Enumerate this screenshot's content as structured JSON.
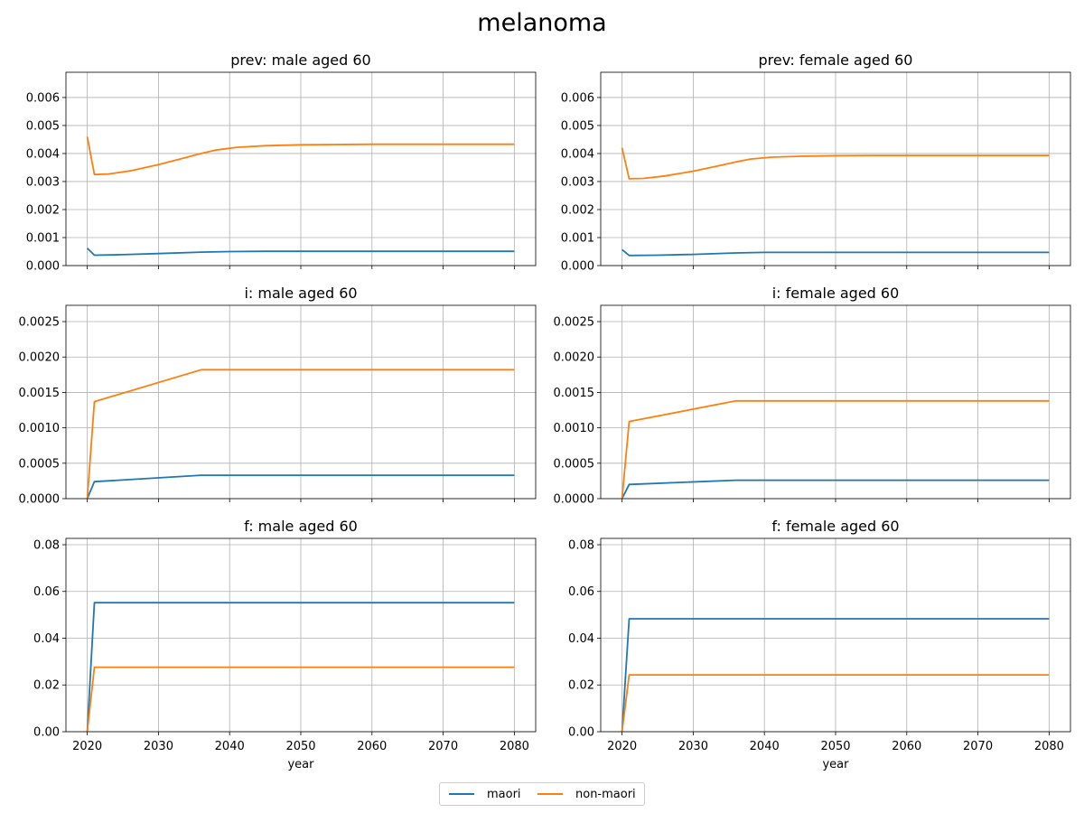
{
  "figure": {
    "title": "melanoma"
  },
  "colors": {
    "maori": "#1f77b4",
    "non_maori": "#ff7f0e",
    "grid": "#b0b0b0"
  },
  "legend": [
    {
      "label": "maori",
      "color": "#1f77b4"
    },
    {
      "label": "non-maori",
      "color": "#ff7f0e"
    }
  ],
  "chart_data": [
    {
      "type": "line",
      "title": "prev: male aged 60",
      "xlabel": "",
      "ylabel": "",
      "xlim": [
        2017,
        2083
      ],
      "ylim": [
        0,
        0.0069
      ],
      "xticks": [
        2020,
        2030,
        2040,
        2050,
        2060,
        2070,
        2080
      ],
      "show_xticklabels": false,
      "yticks": [
        0,
        0.001,
        0.002,
        0.003,
        0.004,
        0.005,
        0.006
      ],
      "ytick_labels": [
        "0.000",
        "0.001",
        "0.002",
        "0.003",
        "0.004",
        "0.005",
        "0.006"
      ],
      "grid": true,
      "series": [
        {
          "name": "maori",
          "color": "#1f77b4",
          "x": [
            2020,
            2021,
            2025,
            2030,
            2036,
            2040,
            2045,
            2050,
            2060,
            2080
          ],
          "y": [
            0.00062,
            0.00037,
            0.00039,
            0.00043,
            0.00048,
            0.0005,
            0.00051,
            0.00051,
            0.00051,
            0.00051
          ]
        },
        {
          "name": "non-maori",
          "color": "#ff7f0e",
          "x": [
            2020,
            2021,
            2023,
            2026,
            2030,
            2033,
            2036,
            2038,
            2041,
            2045,
            2050,
            2055,
            2060,
            2080
          ],
          "y": [
            0.0046,
            0.00325,
            0.00327,
            0.00338,
            0.0036,
            0.0038,
            0.004,
            0.00412,
            0.00422,
            0.00428,
            0.00431,
            0.00432,
            0.00433,
            0.00433
          ]
        }
      ]
    },
    {
      "type": "line",
      "title": "prev: female aged 60",
      "xlabel": "",
      "ylabel": "",
      "xlim": [
        2017,
        2083
      ],
      "ylim": [
        0,
        0.0069
      ],
      "xticks": [
        2020,
        2030,
        2040,
        2050,
        2060,
        2070,
        2080
      ],
      "show_xticklabels": false,
      "yticks": [
        0,
        0.001,
        0.002,
        0.003,
        0.004,
        0.005,
        0.006
      ],
      "ytick_labels": [
        "0.000",
        "0.001",
        "0.002",
        "0.003",
        "0.004",
        "0.005",
        "0.006"
      ],
      "grid": true,
      "series": [
        {
          "name": "maori",
          "color": "#1f77b4",
          "x": [
            2020,
            2021,
            2025,
            2030,
            2036,
            2040,
            2045,
            2050,
            2080
          ],
          "y": [
            0.00057,
            0.00036,
            0.00037,
            0.0004,
            0.00045,
            0.00047,
            0.00047,
            0.00047,
            0.00047
          ]
        },
        {
          "name": "non-maori",
          "color": "#ff7f0e",
          "x": [
            2020,
            2021,
            2023,
            2026,
            2030,
            2033,
            2036,
            2038,
            2041,
            2045,
            2050,
            2055,
            2080
          ],
          "y": [
            0.0042,
            0.0031,
            0.00311,
            0.0032,
            0.00337,
            0.00353,
            0.0037,
            0.0038,
            0.00387,
            0.0039,
            0.00392,
            0.00393,
            0.00393
          ]
        }
      ]
    },
    {
      "type": "line",
      "title": "i: male aged 60",
      "xlabel": "",
      "ylabel": "",
      "xlim": [
        2017,
        2083
      ],
      "ylim": [
        0,
        0.00273
      ],
      "xticks": [
        2020,
        2030,
        2040,
        2050,
        2060,
        2070,
        2080
      ],
      "show_xticklabels": false,
      "yticks": [
        0,
        0.0005,
        0.001,
        0.0015,
        0.002,
        0.0025
      ],
      "ytick_labels": [
        "0.0000",
        "0.0005",
        "0.0010",
        "0.0015",
        "0.0020",
        "0.0025"
      ],
      "grid": true,
      "series": [
        {
          "name": "maori",
          "color": "#1f77b4",
          "x": [
            2020,
            2021,
            2036,
            2080
          ],
          "y": [
            0.0,
            0.00024,
            0.00033,
            0.00033
          ]
        },
        {
          "name": "non-maori",
          "color": "#ff7f0e",
          "x": [
            2020,
            2021,
            2036,
            2080
          ],
          "y": [
            0.0,
            0.00137,
            0.00182,
            0.00182
          ]
        }
      ]
    },
    {
      "type": "line",
      "title": "i: female aged 60",
      "xlabel": "",
      "ylabel": "",
      "xlim": [
        2017,
        2083
      ],
      "ylim": [
        0,
        0.00273
      ],
      "xticks": [
        2020,
        2030,
        2040,
        2050,
        2060,
        2070,
        2080
      ],
      "show_xticklabels": false,
      "yticks": [
        0,
        0.0005,
        0.001,
        0.0015,
        0.002,
        0.0025
      ],
      "ytick_labels": [
        "0.0000",
        "0.0005",
        "0.0010",
        "0.0015",
        "0.0020",
        "0.0025"
      ],
      "grid": true,
      "series": [
        {
          "name": "maori",
          "color": "#1f77b4",
          "x": [
            2020,
            2021,
            2036,
            2080
          ],
          "y": [
            0.0,
            0.0002,
            0.00026,
            0.00026
          ]
        },
        {
          "name": "non-maori",
          "color": "#ff7f0e",
          "x": [
            2020,
            2021,
            2036,
            2080
          ],
          "y": [
            0.0,
            0.00109,
            0.00138,
            0.00138
          ]
        }
      ]
    },
    {
      "type": "line",
      "title": "f: male aged 60",
      "xlabel": "year",
      "ylabel": "",
      "xlim": [
        2017,
        2083
      ],
      "ylim": [
        0,
        0.0827
      ],
      "xticks": [
        2020,
        2030,
        2040,
        2050,
        2060,
        2070,
        2080
      ],
      "show_xticklabels": true,
      "yticks": [
        0,
        0.02,
        0.04,
        0.06,
        0.08
      ],
      "ytick_labels": [
        "0.00",
        "0.02",
        "0.04",
        "0.06",
        "0.08"
      ],
      "grid": true,
      "series": [
        {
          "name": "maori",
          "color": "#1f77b4",
          "x": [
            2020,
            2021,
            2080
          ],
          "y": [
            0.0,
            0.0552,
            0.0552
          ]
        },
        {
          "name": "non-maori",
          "color": "#ff7f0e",
          "x": [
            2020,
            2021,
            2080
          ],
          "y": [
            0.0,
            0.0276,
            0.0276
          ]
        }
      ]
    },
    {
      "type": "line",
      "title": "f: female aged 60",
      "xlabel": "year",
      "ylabel": "",
      "xlim": [
        2017,
        2083
      ],
      "ylim": [
        0,
        0.0827
      ],
      "xticks": [
        2020,
        2030,
        2040,
        2050,
        2060,
        2070,
        2080
      ],
      "show_xticklabels": true,
      "yticks": [
        0,
        0.02,
        0.04,
        0.06,
        0.08
      ],
      "ytick_labels": [
        "0.00",
        "0.02",
        "0.04",
        "0.06",
        "0.08"
      ],
      "grid": true,
      "series": [
        {
          "name": "maori",
          "color": "#1f77b4",
          "x": [
            2020,
            2021,
            2080
          ],
          "y": [
            0.0,
            0.0483,
            0.0483
          ]
        },
        {
          "name": "non-maori",
          "color": "#ff7f0e",
          "x": [
            2020,
            2021,
            2080
          ],
          "y": [
            0.0,
            0.0243,
            0.0243
          ]
        }
      ]
    }
  ]
}
